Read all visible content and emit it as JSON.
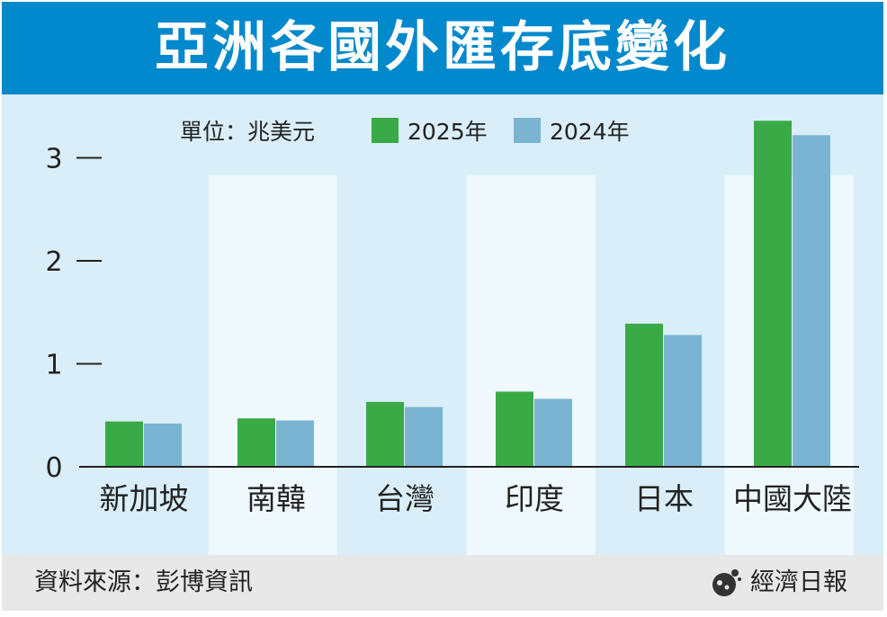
{
  "title": "亞洲各國外匯存底變化",
  "unit_label": "單位：兆美元",
  "footer": {
    "source": "資料來源：彭博資訊",
    "brand": "經濟日報"
  },
  "chart_data": {
    "type": "bar",
    "title": "亞洲各國外匯存底變化",
    "ylabel": "",
    "unit": "兆美元",
    "categories": [
      "新加坡",
      "南韓",
      "台灣",
      "印度",
      "日本",
      "中國大陸"
    ],
    "series": [
      {
        "name": "2025年",
        "color": "#3aaa46",
        "values": [
          0.44,
          0.47,
          0.63,
          0.73,
          1.39,
          3.36
        ]
      },
      {
        "name": "2024年",
        "color": "#7ab4d2",
        "values": [
          0.42,
          0.45,
          0.58,
          0.66,
          1.28,
          3.22
        ]
      }
    ],
    "yticks": [
      0,
      1,
      2,
      3
    ],
    "ylim": [
      0,
      3.4
    ],
    "legend_position": "top",
    "grid": false
  }
}
